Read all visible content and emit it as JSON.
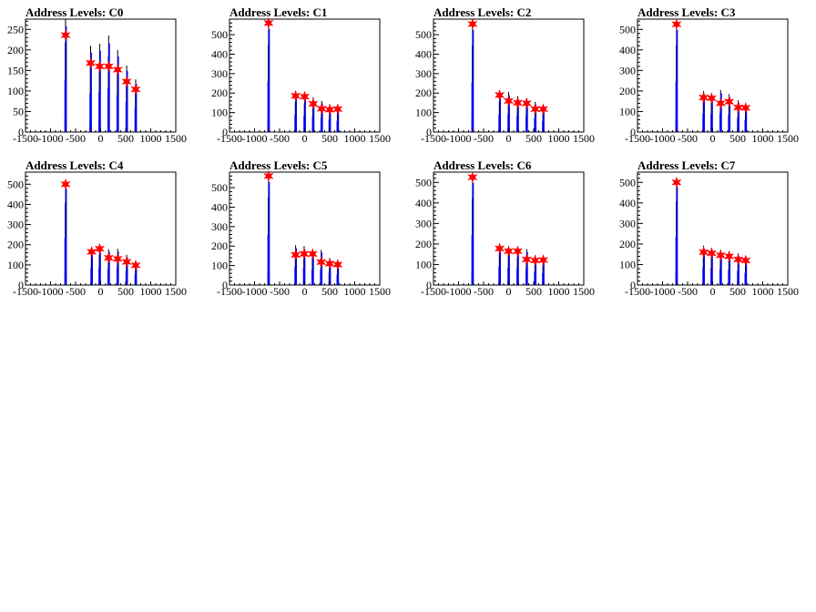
{
  "colors": {
    "histogram": "#000000",
    "fit": "#0000ff",
    "peak_marker": "#ff0000",
    "frame": "#000000",
    "background": "#ffffff"
  },
  "x_ticks": [
    -1500,
    -1000,
    -500,
    0,
    500,
    1000,
    1500
  ],
  "chart_data": [
    {
      "type": "bar",
      "title": "Address Levels: C0",
      "xlim": [
        -1500,
        1500
      ],
      "ylim": [
        0,
        275
      ],
      "y_ticks": [
        0,
        50,
        100,
        150,
        200,
        250
      ],
      "peaks": [
        {
          "x": -700,
          "y": 236
        },
        {
          "x": -200,
          "y": 168
        },
        {
          "x": -20,
          "y": 160
        },
        {
          "x": 160,
          "y": 160
        },
        {
          "x": 340,
          "y": 152
        },
        {
          "x": 520,
          "y": 123
        },
        {
          "x": 700,
          "y": 104
        }
      ],
      "histogram_max": [
        280,
        210,
        215,
        235,
        200,
        162,
        128
      ]
    },
    {
      "type": "bar",
      "title": "Address Levels: C1",
      "xlim": [
        -1500,
        1500
      ],
      "ylim": [
        0,
        580
      ],
      "y_ticks": [
        0,
        100,
        200,
        300,
        400,
        500
      ],
      "peaks": [
        {
          "x": -720,
          "y": 560
        },
        {
          "x": -180,
          "y": 186
        },
        {
          "x": 0,
          "y": 182
        },
        {
          "x": 170,
          "y": 145
        },
        {
          "x": 340,
          "y": 120
        },
        {
          "x": 500,
          "y": 115
        },
        {
          "x": 660,
          "y": 118
        }
      ],
      "histogram_max": [
        575,
        198,
        188,
        178,
        160,
        145,
        128
      ]
    },
    {
      "type": "bar",
      "title": "Address Levels: C2",
      "xlim": [
        -1500,
        1500
      ],
      "ylim": [
        0,
        580
      ],
      "y_ticks": [
        0,
        100,
        200,
        300,
        400,
        500
      ],
      "peaks": [
        {
          "x": -720,
          "y": 555
        },
        {
          "x": -180,
          "y": 190
        },
        {
          "x": 0,
          "y": 160
        },
        {
          "x": 180,
          "y": 150
        },
        {
          "x": 360,
          "y": 148
        },
        {
          "x": 530,
          "y": 118
        },
        {
          "x": 690,
          "y": 118
        }
      ],
      "histogram_max": [
        570,
        200,
        205,
        185,
        175,
        155,
        128
      ]
    },
    {
      "type": "bar",
      "title": "Address Levels: C3",
      "xlim": [
        -1500,
        1500
      ],
      "ylim": [
        0,
        550
      ],
      "y_ticks": [
        0,
        100,
        200,
        300,
        400,
        500
      ],
      "peaks": [
        {
          "x": -720,
          "y": 525
        },
        {
          "x": -180,
          "y": 168
        },
        {
          "x": -20,
          "y": 165
        },
        {
          "x": 160,
          "y": 140
        },
        {
          "x": 330,
          "y": 148
        },
        {
          "x": 510,
          "y": 120
        },
        {
          "x": 660,
          "y": 118
        }
      ],
      "histogram_max": [
        540,
        200,
        190,
        205,
        185,
        155,
        130
      ]
    },
    {
      "type": "bar",
      "title": "Address Levels: C4",
      "xlim": [
        -1500,
        1500
      ],
      "ylim": [
        0,
        560
      ],
      "y_ticks": [
        0,
        100,
        200,
        300,
        400,
        500
      ],
      "peaks": [
        {
          "x": -700,
          "y": 500
        },
        {
          "x": -180,
          "y": 165
        },
        {
          "x": -20,
          "y": 180
        },
        {
          "x": 160,
          "y": 135
        },
        {
          "x": 340,
          "y": 130
        },
        {
          "x": 520,
          "y": 115
        },
        {
          "x": 700,
          "y": 98
        }
      ],
      "histogram_max": [
        520,
        190,
        195,
        178,
        180,
        150,
        118
      ]
    },
    {
      "type": "bar",
      "title": "Address Levels: C5",
      "xlim": [
        -1500,
        1500
      ],
      "ylim": [
        0,
        580
      ],
      "y_ticks": [
        0,
        100,
        200,
        300,
        400,
        500
      ],
      "peaks": [
        {
          "x": -720,
          "y": 560
        },
        {
          "x": -180,
          "y": 155
        },
        {
          "x": -10,
          "y": 160
        },
        {
          "x": 160,
          "y": 160
        },
        {
          "x": 330,
          "y": 118
        },
        {
          "x": 500,
          "y": 110
        },
        {
          "x": 660,
          "y": 105
        }
      ],
      "histogram_max": [
        575,
        205,
        200,
        178,
        180,
        140,
        118
      ]
    },
    {
      "type": "bar",
      "title": "Address Levels: C6",
      "xlim": [
        -1500,
        1500
      ],
      "ylim": [
        0,
        550
      ],
      "y_ticks": [
        0,
        100,
        200,
        300,
        400,
        500
      ],
      "peaks": [
        {
          "x": -720,
          "y": 525
        },
        {
          "x": -180,
          "y": 178
        },
        {
          "x": 0,
          "y": 165
        },
        {
          "x": 180,
          "y": 165
        },
        {
          "x": 360,
          "y": 125
        },
        {
          "x": 530,
          "y": 120
        },
        {
          "x": 690,
          "y": 122
        }
      ],
      "histogram_max": [
        540,
        200,
        188,
        178,
        175,
        145,
        130
      ]
    },
    {
      "type": "bar",
      "title": "Address Levels: C7",
      "xlim": [
        -1500,
        1500
      ],
      "ylim": [
        0,
        550
      ],
      "y_ticks": [
        0,
        100,
        200,
        300,
        400,
        500
      ],
      "peaks": [
        {
          "x": -720,
          "y": 500
        },
        {
          "x": -180,
          "y": 160
        },
        {
          "x": -20,
          "y": 155
        },
        {
          "x": 160,
          "y": 145
        },
        {
          "x": 330,
          "y": 140
        },
        {
          "x": 510,
          "y": 125
        },
        {
          "x": 660,
          "y": 120
        }
      ],
      "histogram_max": [
        520,
        192,
        182,
        172,
        165,
        155,
        132
      ]
    }
  ]
}
